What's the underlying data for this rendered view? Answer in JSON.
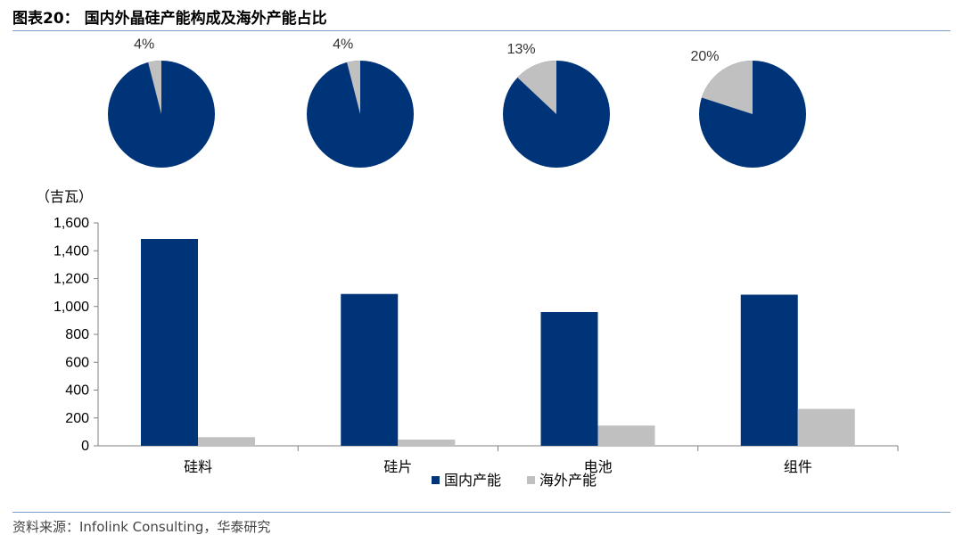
{
  "header": {
    "title": "图表20： 国内外晶硅产能构成及海外产能占比"
  },
  "footer": {
    "source": "资料来源：Infolink Consulting，华泰研究"
  },
  "colors": {
    "domestic": "#003478",
    "overseas": "#c0c0c0",
    "rule": "#7b9bc9"
  },
  "chart_data": [
    {
      "type": "pie",
      "charts": [
        {
          "category": "硅料",
          "overseas_share_label": "4%",
          "values": [
            96,
            4
          ]
        },
        {
          "category": "硅片",
          "overseas_share_label": "4%",
          "values": [
            96,
            4
          ]
        },
        {
          "category": "电池",
          "overseas_share_label": "13%",
          "values": [
            87,
            13
          ]
        },
        {
          "category": "组件",
          "overseas_share_label": "20%",
          "values": [
            80,
            20
          ]
        }
      ]
    },
    {
      "type": "bar",
      "ylabel": "（吉瓦）",
      "ylim": [
        0,
        1600
      ],
      "yticks": [
        0,
        200,
        400,
        600,
        800,
        1000,
        1200,
        1400,
        1600
      ],
      "ytick_labels": [
        "0",
        "200",
        "400",
        "600",
        "800",
        "1,000",
        "1,200",
        "1,400",
        "1,600"
      ],
      "categories": [
        "硅料",
        "硅片",
        "电池",
        "组件"
      ],
      "series": [
        {
          "name": "国内产能",
          "values": [
            1485,
            1090,
            960,
            1085
          ]
        },
        {
          "name": "海外产能",
          "values": [
            62,
            45,
            145,
            265
          ]
        }
      ],
      "legend": "bottom-center"
    }
  ]
}
